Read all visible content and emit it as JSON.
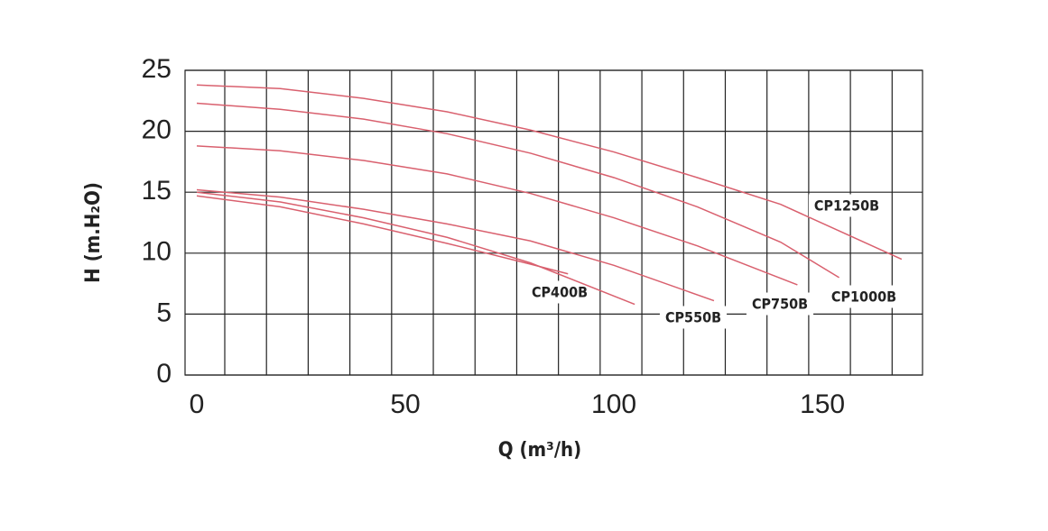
{
  "chart_data": {
    "type": "line",
    "x_label": "Q (m³/h)",
    "y_label": "H (m.H₂O)",
    "xlim": [
      0,
      174
    ],
    "ylim": [
      0,
      25
    ],
    "xticks": [
      0,
      50,
      100,
      150
    ],
    "yticks": [
      0,
      5,
      10,
      15,
      20,
      25
    ],
    "grid": true,
    "series": [
      {
        "name": "CP400B",
        "color": "#d9606e",
        "x": [
          0,
          20,
          40,
          60,
          80,
          89
        ],
        "values": [
          14.7,
          13.8,
          12.4,
          10.8,
          9.1,
          8.3
        ]
      },
      {
        "name": "CP550B",
        "color": "#d9606e",
        "x": [
          0,
          20,
          40,
          60,
          80,
          105
        ],
        "values": [
          15.0,
          14.2,
          12.9,
          11.3,
          9.2,
          5.8
        ]
      },
      {
        "color": "#d9606e",
        "x": [
          0,
          20,
          40,
          60,
          80,
          100,
          124
        ],
        "values": [
          15.2,
          14.6,
          13.6,
          12.4,
          11.0,
          9.0,
          6.1
        ]
      },
      {
        "name": "CP750B",
        "color": "#d9606e",
        "x": [
          0,
          20,
          40,
          60,
          80,
          100,
          120,
          144
        ],
        "values": [
          18.8,
          18.4,
          17.6,
          16.5,
          14.9,
          12.9,
          10.6,
          7.4
        ]
      },
      {
        "name": "CP1000B",
        "color": "#d9606e",
        "x": [
          0,
          20,
          40,
          60,
          80,
          100,
          120,
          140,
          154
        ],
        "values": [
          22.3,
          21.8,
          21.0,
          19.8,
          18.2,
          16.2,
          13.8,
          10.9,
          8.0
        ]
      },
      {
        "name": "CP1250B",
        "color": "#d9606e",
        "x": [
          0,
          20,
          40,
          60,
          80,
          100,
          120,
          140,
          169
        ],
        "values": [
          23.8,
          23.5,
          22.7,
          21.6,
          20.1,
          18.3,
          16.2,
          14.0,
          9.5
        ]
      }
    ]
  }
}
